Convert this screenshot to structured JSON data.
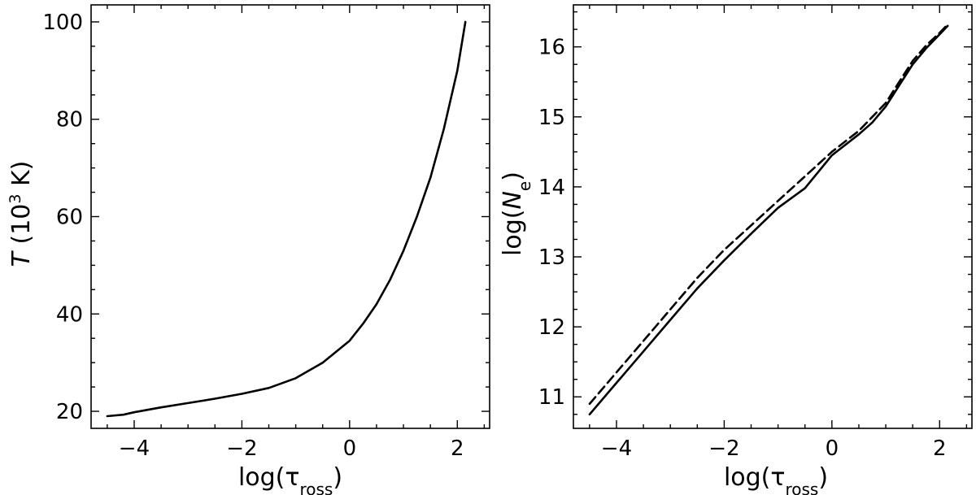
{
  "chart_data": [
    {
      "type": "line",
      "xlabel": "log(τ_ross)",
      "xlabel_parts": {
        "prefix": "log(τ",
        "sub": "ross",
        "suffix": ")"
      },
      "ylabel": "T (10^3 K)",
      "ylabel_parts": {
        "var": "T",
        "mid": " (10",
        "sup": "3",
        "suffix": " K)"
      },
      "xlim": [
        -4.8,
        2.6
      ],
      "ylim": [
        16.5,
        103.5
      ],
      "xticks": [
        -4,
        -2,
        0,
        2
      ],
      "xtick_labels": [
        "−4",
        "−2",
        "0",
        "2"
      ],
      "yticks": [
        20,
        40,
        60,
        80,
        100
      ],
      "ytick_labels": [
        "20",
        "40",
        "60",
        "80",
        "100"
      ],
      "x_minor_step": 0.5,
      "y_minor_step": 5,
      "grid": false,
      "series": [
        {
          "style": "solid",
          "color": "#000000",
          "x": [
            -4.5,
            -4.2,
            -4.0,
            -3.5,
            -3.0,
            -2.5,
            -2.0,
            -1.5,
            -1.0,
            -0.5,
            0.0,
            0.25,
            0.5,
            0.75,
            1.0,
            1.25,
            1.5,
            1.75,
            2.0,
            2.15
          ],
          "y": [
            19.0,
            19.3,
            19.8,
            20.8,
            21.7,
            22.6,
            23.6,
            24.8,
            26.8,
            30.0,
            34.5,
            38.0,
            42.0,
            47.0,
            53.0,
            60.0,
            68.0,
            78.0,
            90.0,
            100.0
          ]
        }
      ]
    },
    {
      "type": "line",
      "xlabel": "log(τ_ross)",
      "xlabel_parts": {
        "prefix": "log(τ",
        "sub": "ross",
        "suffix": ")"
      },
      "ylabel": "log(N_e)",
      "ylabel_parts": {
        "prefix": "log(",
        "var": "N",
        "sub": "e",
        "suffix": ")"
      },
      "xlim": [
        -4.8,
        2.6
      ],
      "ylim": [
        10.55,
        16.6
      ],
      "xticks": [
        -4,
        -2,
        0,
        2
      ],
      "xtick_labels": [
        "−4",
        "−2",
        "0",
        "2"
      ],
      "yticks": [
        11,
        12,
        13,
        14,
        15,
        16
      ],
      "ytick_labels": [
        "11",
        "12",
        "13",
        "14",
        "15",
        "16"
      ],
      "x_minor_step": 0.5,
      "y_minor_step": 0.25,
      "grid": false,
      "series": [
        {
          "style": "solid",
          "color": "#000000",
          "x": [
            -4.5,
            -4.0,
            -3.5,
            -3.0,
            -2.5,
            -2.0,
            -1.5,
            -1.0,
            -0.5,
            0.0,
            0.5,
            0.75,
            1.0,
            1.25,
            1.5,
            1.75,
            2.0,
            2.15
          ],
          "y": [
            10.75,
            11.2,
            11.65,
            12.1,
            12.55,
            12.95,
            13.33,
            13.7,
            13.98,
            14.45,
            14.75,
            14.92,
            15.15,
            15.45,
            15.75,
            15.98,
            16.18,
            16.3
          ]
        },
        {
          "style": "dashed",
          "color": "#000000",
          "x": [
            -4.5,
            -4.0,
            -3.5,
            -3.0,
            -2.5,
            -2.0,
            -1.5,
            -1.0,
            -0.5,
            0.0,
            0.5,
            0.75,
            1.0,
            1.25,
            1.5,
            1.75,
            2.0,
            2.15
          ],
          "y": [
            10.9,
            11.35,
            11.8,
            12.25,
            12.7,
            13.1,
            13.45,
            13.8,
            14.15,
            14.5,
            14.8,
            15.0,
            15.2,
            15.5,
            15.8,
            16.02,
            16.2,
            16.32
          ]
        }
      ]
    }
  ]
}
